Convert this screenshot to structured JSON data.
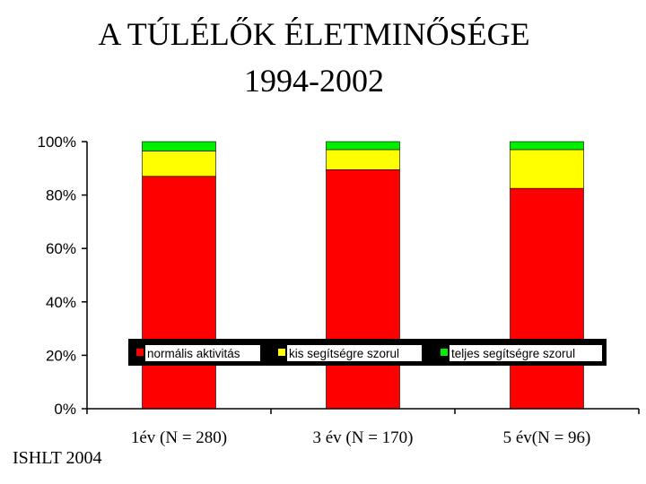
{
  "title_line1": "A TÚLÉLŐK ÉLETMINŐSÉGE",
  "title_line2": "1994-2002",
  "footer": "ISHLT 2004",
  "chart_data": {
    "type": "bar",
    "stacked": true,
    "percent": true,
    "categories": [
      "1év (N = 280)",
      "3 év (N = 170)",
      "5 év(N = 96)"
    ],
    "series": [
      {
        "name": "normális aktivitás",
        "color": "#ff0000",
        "values": [
          87,
          89.5,
          82.5
        ]
      },
      {
        "name": "kis segítségre szorul",
        "color": "#ffff00",
        "values": [
          9.5,
          7.5,
          14.5
        ]
      },
      {
        "name": "teljes segítségre szorul",
        "color": "#00ee00",
        "values": [
          3.5,
          3,
          3
        ]
      }
    ],
    "yticks": [
      "0%",
      "20%",
      "40%",
      "60%",
      "80%",
      "100%"
    ],
    "ylim": [
      0,
      100
    ],
    "legend_position": "inside-center",
    "legend_background": "#000000",
    "grid": false
  }
}
